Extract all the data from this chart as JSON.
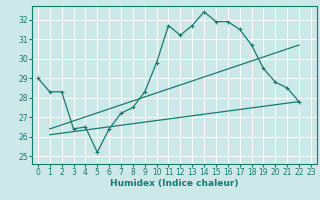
{
  "title": "",
  "xlabel": "Humidex (Indice chaleur)",
  "background_color": "#cce8e8",
  "grid_color": "#ffffff",
  "line_color": "#1a7a6e",
  "xlim": [
    -0.5,
    23.5
  ],
  "ylim": [
    24.6,
    32.7
  ],
  "xticks": [
    0,
    1,
    2,
    3,
    4,
    5,
    6,
    7,
    8,
    9,
    10,
    11,
    12,
    13,
    14,
    15,
    16,
    17,
    18,
    19,
    20,
    21,
    22,
    23
  ],
  "yticks": [
    25,
    26,
    27,
    28,
    29,
    30,
    31,
    32
  ],
  "line1_x": [
    0,
    1,
    2,
    3,
    4,
    5,
    6,
    7,
    8,
    9,
    10,
    11,
    12,
    13,
    14,
    15,
    16,
    17,
    18,
    19,
    20,
    21,
    22
  ],
  "line1_y": [
    29.0,
    28.3,
    28.3,
    26.4,
    26.5,
    25.2,
    26.4,
    27.2,
    27.5,
    28.3,
    29.8,
    31.7,
    31.2,
    31.7,
    32.4,
    31.9,
    31.9,
    31.5,
    30.7,
    29.5,
    28.8,
    28.5,
    27.8
  ],
  "line2_x": [
    1,
    22
  ],
  "line2_y": [
    26.4,
    30.7
  ],
  "line3_x": [
    1,
    22
  ],
  "line3_y": [
    26.1,
    27.8
  ]
}
